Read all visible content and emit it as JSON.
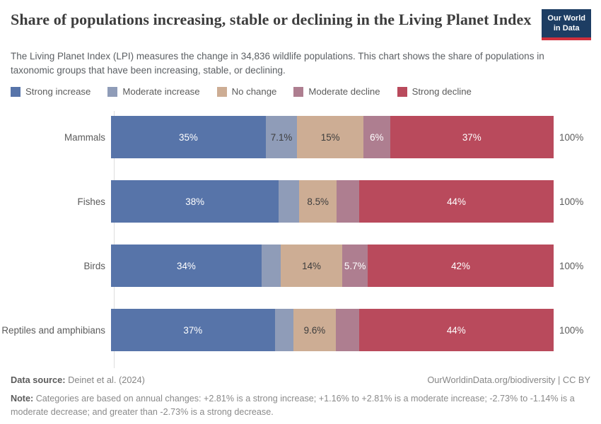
{
  "header": {
    "title": "Share of populations increasing, stable or declining in the Living Planet Index",
    "subtitle": "The Living Planet Index (LPI) measures the change in 34,836 wildlife populations. This chart shows the share of populations in taxonomic groups that have been increasing, stable, or declining.",
    "logo": {
      "line1": "Our World",
      "line2": "in Data",
      "bg_color": "#1d3d63",
      "accent_color": "#d0303c"
    }
  },
  "legend": [
    {
      "label": "Strong increase",
      "color": "#5774a9"
    },
    {
      "label": "Moderate increase",
      "color": "#8f9cb8"
    },
    {
      "label": "No change",
      "color": "#cdad94"
    },
    {
      "label": "Moderate decline",
      "color": "#ae7e90"
    },
    {
      "label": "Strong decline",
      "color": "#b94a5c"
    }
  ],
  "chart_data": {
    "type": "bar",
    "orientation": "horizontal",
    "stacked": true,
    "xlim": [
      0,
      100
    ],
    "categories": [
      "Mammals",
      "Fishes",
      "Birds",
      "Reptiles and amphibians"
    ],
    "series": [
      {
        "name": "Strong increase",
        "color": "#5774a9",
        "text_color": "#ffffff",
        "values": [
          35,
          38,
          34,
          37
        ],
        "labels": [
          "35%",
          "38%",
          "34%",
          "37%"
        ]
      },
      {
        "name": "Moderate increase",
        "color": "#8f9cb8",
        "text_color": "#3d3d3d",
        "values": [
          7.1,
          4.6,
          4.3,
          4.2
        ],
        "labels": [
          "7.1%",
          "",
          "",
          ""
        ]
      },
      {
        "name": "No change",
        "color": "#cdad94",
        "text_color": "#3d3d3d",
        "values": [
          15,
          8.5,
          14,
          9.6
        ],
        "labels": [
          "15%",
          "8.5%",
          "14%",
          "9.6%"
        ]
      },
      {
        "name": "Moderate decline",
        "color": "#ae7e90",
        "text_color": "#ffffff",
        "values": [
          6,
          5.1,
          5.7,
          5.2
        ],
        "labels": [
          "6%",
          "",
          "5.7%",
          ""
        ]
      },
      {
        "name": "Strong decline",
        "color": "#b94a5c",
        "text_color": "#ffffff",
        "values": [
          37,
          44,
          42,
          44
        ],
        "labels": [
          "37%",
          "44%",
          "42%",
          "44%"
        ]
      }
    ],
    "total_label": "100%"
  },
  "footer": {
    "data_source_label": "Data source:",
    "data_source_value": "Deinet et al. (2024)",
    "attribution": "OurWorldinData.org/biodiversity | CC BY",
    "note_label": "Note:",
    "note_text": "Categories are based on annual changes: +2.81% is a strong increase; +1.16% to +2.81% is a moderate increase; -2.73% to -1.14% is a moderate decrease; and greater than -2.73% is a strong decrease."
  }
}
